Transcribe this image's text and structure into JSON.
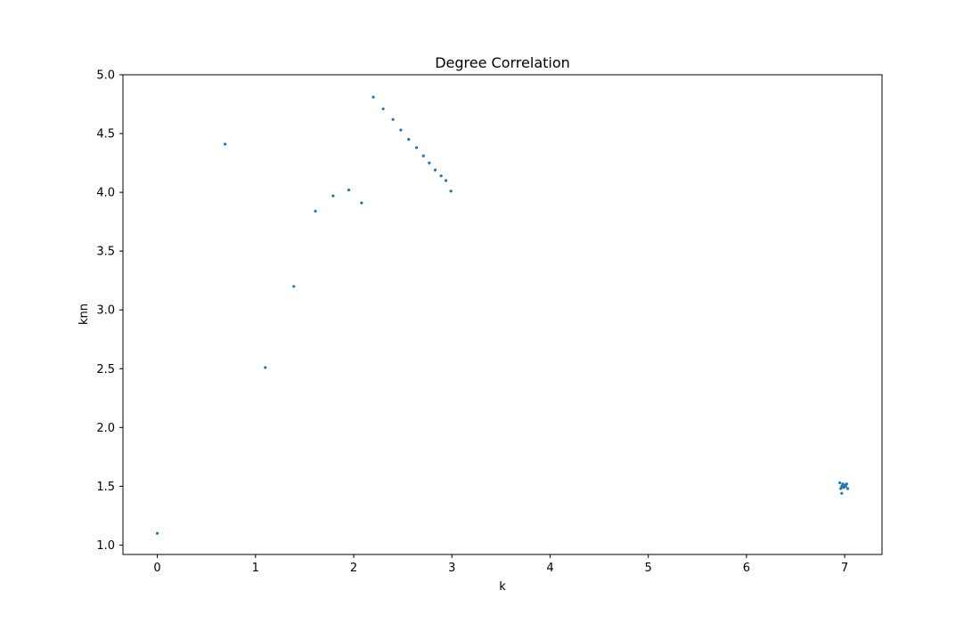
{
  "chart_data": {
    "type": "scatter",
    "title": "Degree Correlation",
    "xlabel": "k",
    "ylabel": "knn",
    "xlim": [
      -0.35,
      7.38
    ],
    "ylim": [
      0.92,
      5.0
    ],
    "xticks": [
      0,
      1,
      2,
      3,
      4,
      5,
      6,
      7
    ],
    "yticks": [
      1.0,
      1.5,
      2.0,
      2.5,
      3.0,
      3.5,
      4.0,
      4.5,
      5.0
    ],
    "xtick_labels": [
      "0",
      "1",
      "2",
      "3",
      "4",
      "5",
      "6",
      "7"
    ],
    "ytick_labels": [
      "1.0",
      "1.5",
      "2.0",
      "2.5",
      "3.0",
      "3.5",
      "4.0",
      "4.5",
      "5.0"
    ],
    "grid": false,
    "marker_color": "#1f77b4",
    "points": [
      {
        "x": 0.0,
        "y": 1.1
      },
      {
        "x": 0.69,
        "y": 4.41
      },
      {
        "x": 1.1,
        "y": 2.51
      },
      {
        "x": 1.39,
        "y": 3.2
      },
      {
        "x": 1.61,
        "y": 3.84
      },
      {
        "x": 1.79,
        "y": 3.97
      },
      {
        "x": 1.95,
        "y": 4.02
      },
      {
        "x": 2.08,
        "y": 3.91
      },
      {
        "x": 2.2,
        "y": 4.81
      },
      {
        "x": 2.3,
        "y": 4.71
      },
      {
        "x": 2.4,
        "y": 4.62
      },
      {
        "x": 2.48,
        "y": 4.53
      },
      {
        "x": 2.56,
        "y": 4.45
      },
      {
        "x": 2.64,
        "y": 4.38
      },
      {
        "x": 2.71,
        "y": 4.31
      },
      {
        "x": 2.77,
        "y": 4.25
      },
      {
        "x": 2.83,
        "y": 4.19
      },
      {
        "x": 2.89,
        "y": 4.14
      },
      {
        "x": 2.94,
        "y": 4.1
      },
      {
        "x": 2.99,
        "y": 4.01
      },
      {
        "x": 6.95,
        "y": 1.53
      },
      {
        "x": 6.97,
        "y": 1.5
      },
      {
        "x": 6.98,
        "y": 1.52
      },
      {
        "x": 6.99,
        "y": 1.49
      },
      {
        "x": 7.0,
        "y": 1.51
      },
      {
        "x": 7.01,
        "y": 1.5
      },
      {
        "x": 7.02,
        "y": 1.52
      },
      {
        "x": 6.96,
        "y": 1.48
      },
      {
        "x": 7.03,
        "y": 1.48
      },
      {
        "x": 6.97,
        "y": 1.44
      }
    ]
  }
}
